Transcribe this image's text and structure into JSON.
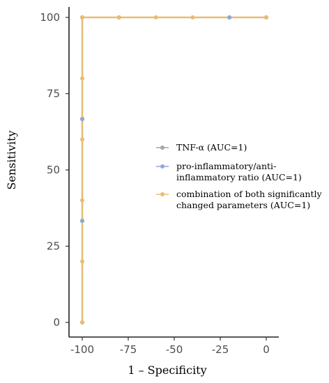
{
  "chart_data": {
    "type": "line",
    "xlabel": "1 – Specificity",
    "ylabel": "Sensitivity",
    "xlim": [
      -100,
      0
    ],
    "ylim": [
      0,
      100
    ],
    "x_ticks": [
      -100,
      -75,
      -50,
      -25,
      0
    ],
    "x_tick_labels": [
      "-100",
      "-75",
      "-50",
      "-25",
      "0"
    ],
    "y_ticks": [
      0,
      25,
      50,
      75,
      100
    ],
    "y_tick_labels": [
      "0",
      "25",
      "50",
      "75",
      "100"
    ],
    "grid": false,
    "legend_position": "right",
    "series": [
      {
        "name": "TNF-α (AUC=1)",
        "color": "#a6a6a6",
        "points": [
          [
            -100,
            0
          ],
          [
            -100,
            33.3
          ],
          [
            -100,
            66.7
          ],
          [
            -100,
            100
          ],
          [
            -80,
            100
          ],
          [
            -20,
            100
          ],
          [
            0,
            100
          ]
        ]
      },
      {
        "name": "pro-inflammatory/anti-inflammatory ratio (AUC=1)",
        "legend_lines": [
          "pro-inflammatory/anti-",
          "inflammatory ratio (AUC=1)"
        ],
        "color": "#8eaad6",
        "points": [
          [
            -100,
            0
          ],
          [
            -100,
            33.3
          ],
          [
            -100,
            66.7
          ],
          [
            -100,
            100
          ],
          [
            -80,
            100
          ],
          [
            -20,
            100
          ],
          [
            0,
            100
          ]
        ]
      },
      {
        "name": "combination of both significantly changed parameters (AUC=1)",
        "legend_lines": [
          "combination of both significantly",
          "changed parameters (AUC=1)"
        ],
        "color": "#e6bd73",
        "points": [
          [
            -100,
            0
          ],
          [
            -100,
            20
          ],
          [
            -100,
            40
          ],
          [
            -100,
            60
          ],
          [
            -100,
            80
          ],
          [
            -100,
            100
          ],
          [
            -80,
            100
          ],
          [
            -60,
            100
          ],
          [
            -40,
            100
          ],
          [
            0,
            100
          ]
        ]
      }
    ]
  }
}
